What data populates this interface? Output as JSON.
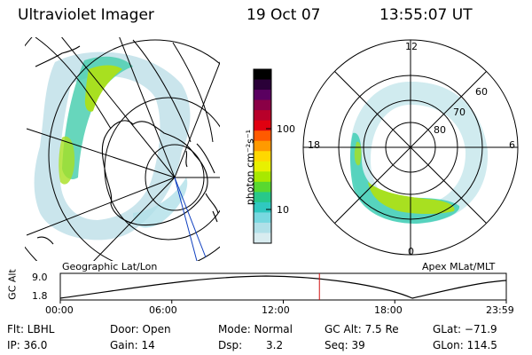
{
  "header": {
    "title": "Ultraviolet Imager",
    "date": "19 Oct 07",
    "time": "13:55:07 UT"
  },
  "colorbar": {
    "unit_label": "photon cm⁻²s⁻¹",
    "ticks": [
      "100",
      "10"
    ],
    "colors": [
      "#000000",
      "#2a0038",
      "#5a0060",
      "#8a0046",
      "#b8002a",
      "#e00010",
      "#ff5a00",
      "#ff9a00",
      "#ffd800",
      "#e8f000",
      "#a8e800",
      "#58d830",
      "#28c88a",
      "#30c8c0",
      "#78d8e0",
      "#b0e0e8",
      "#d8ecf0"
    ]
  },
  "left_map": {
    "label": "Geographic Lat/Lon"
  },
  "right_map": {
    "label": "Apex MLat/MLT",
    "mlt_labels": {
      "top": "12",
      "bottom": "0",
      "left": "18",
      "right": "6"
    },
    "lat_labels": [
      "60",
      "70",
      "80"
    ]
  },
  "timeline": {
    "y_axis_label": "GC Alt",
    "y_ticks": [
      "9.0",
      "1.8"
    ],
    "x_ticks": [
      "00:00",
      "06:00",
      "12:00",
      "18:00",
      "23:59"
    ],
    "current_time_fraction": 0.581,
    "marker_color": "#d01010"
  },
  "info": {
    "row1": {
      "flt": "Flt: LBHL",
      "door": "Door: Open",
      "mode": "Mode: Normal",
      "gc_alt": "GC Alt: 7.5 Re",
      "glat": "GLat: −71.9"
    },
    "row2": {
      "ip": "IP: 36.0",
      "gain": "Gain: 14",
      "dsp_label": "Dsp:",
      "dsp_value": "3.2",
      "seq": "Seq: 39",
      "glon": "GLon: 114.5"
    }
  }
}
